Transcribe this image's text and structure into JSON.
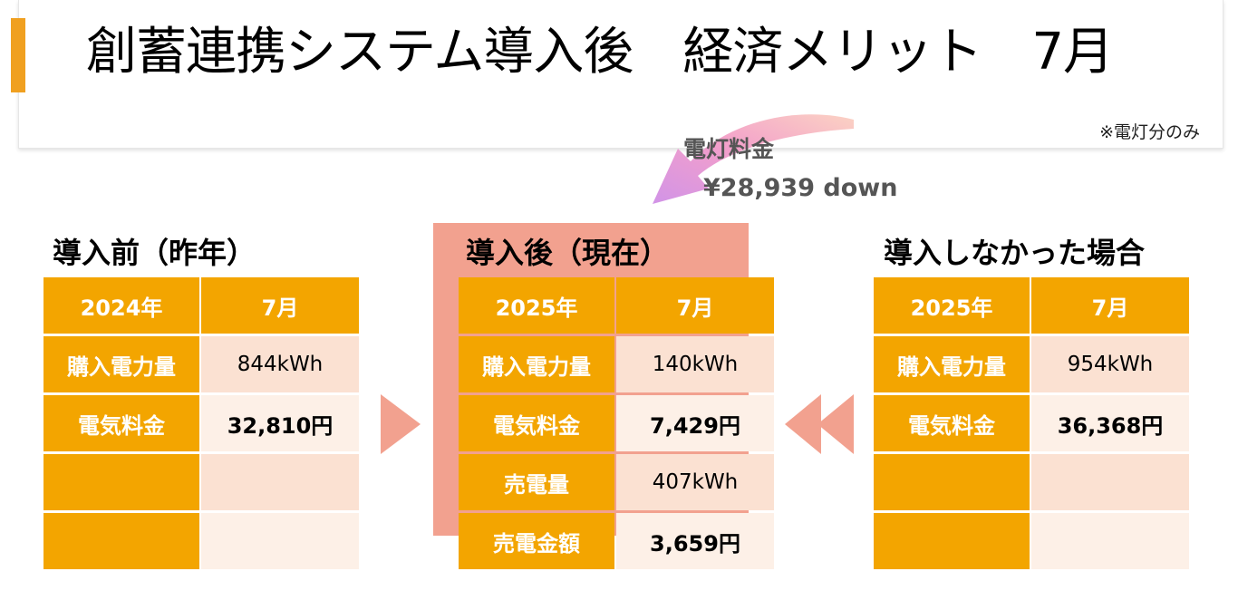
{
  "header": {
    "title": "創蓄連携システム導入後　経済メリット　7月",
    "note": "※電灯分のみ"
  },
  "savings": {
    "label": "電灯料金",
    "amount": "¥28,939 down"
  },
  "colors": {
    "accent": "#f3a500",
    "highlight": "#f2a18f",
    "row_light": "#fbe1d2",
    "row_lighter": "#fdf0e7"
  },
  "tables": {
    "before": {
      "title": "導入前（昨年）",
      "year": "2024年",
      "month": "7月",
      "rows": [
        {
          "label": "購入電力量",
          "value": "844kWh"
        },
        {
          "label": "電気料金",
          "value": "32,810円"
        },
        {
          "label": "",
          "value": ""
        },
        {
          "label": "",
          "value": ""
        }
      ]
    },
    "after": {
      "title": "導入後（現在）",
      "year": "2025年",
      "month": "7月",
      "rows": [
        {
          "label": "購入電力量",
          "value": "140kWh"
        },
        {
          "label": "電気料金",
          "value": "7,429円"
        },
        {
          "label": "売電量",
          "value": "407kWh"
        },
        {
          "label": "売電金額",
          "value": "3,659円"
        }
      ]
    },
    "without": {
      "title": "導入しなかった場合",
      "year": "2025年",
      "month": "7月",
      "rows": [
        {
          "label": "購入電力量",
          "value": "954kWh"
        },
        {
          "label": "電気料金",
          "value": "36,368円"
        },
        {
          "label": "",
          "value": ""
        },
        {
          "label": "",
          "value": ""
        }
      ]
    }
  }
}
